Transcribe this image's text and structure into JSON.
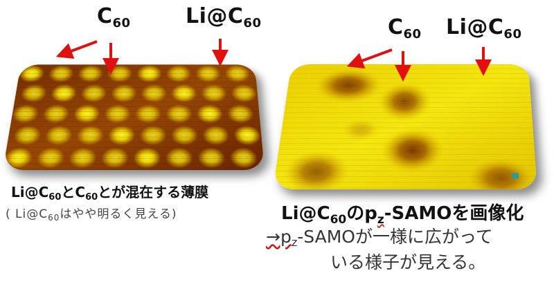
{
  "left_panel": {
    "label_c60": {
      "main": "C",
      "sub": "60"
    },
    "label_lic60": {
      "main": "Li@C",
      "sub": "60"
    },
    "caption_line1": {
      "p1": "Li@C",
      "s1": "60",
      "p2": "とC",
      "s2": "60",
      "p3": "とが混在する薄膜"
    },
    "caption_line2": {
      "p1": "( Li@C",
      "s1": "60",
      "p2": "はやや明るく見える)"
    }
  },
  "right_panel": {
    "label_c60": {
      "main": "C",
      "sub": "60"
    },
    "label_lic60": {
      "main": "Li@C",
      "sub": "60"
    },
    "caption_line1": {
      "p1": "Li@C",
      "s1": "60",
      "p2": "のp",
      "s2": "z",
      "p3": "-SAMOを画像化"
    },
    "caption_line2": {
      "p1": "→p",
      "s1": "z",
      "p2": "-SAMOが一様に広がって"
    },
    "caption_line3": "いる様子が見える。"
  },
  "colors": {
    "arrow": "#e01010",
    "stm_bright": "#f6e800",
    "stm_mid": "#c98a00",
    "stm_dark": "#5a1a00"
  }
}
